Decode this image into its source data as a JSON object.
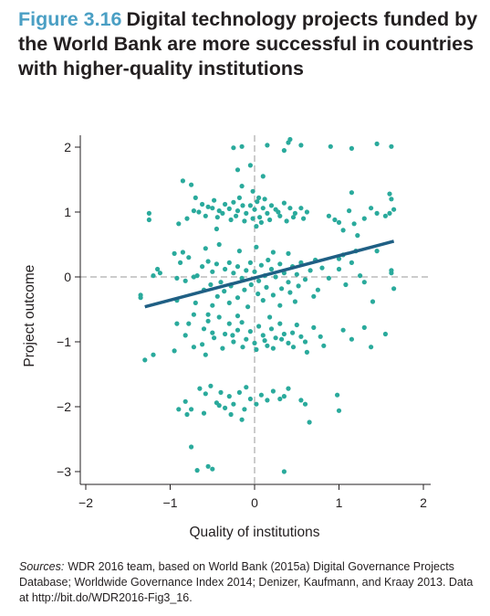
{
  "title": {
    "figure_label": "Figure 3.16",
    "text": "Digital technology projects funded by the World Bank are more successful in countries with higher-quality institutions"
  },
  "sources": {
    "label": "Sources:",
    "text": "WDR 2016 team, based on World Bank (2015a) Digital Governance Projects Database; Worldwide Governance Index 2014; Denizer, Kaufmann, and Kraay 2013. Data at http://bit.do/WDR2016-Fig3_16."
  },
  "colors": {
    "points": "#2aaa9c",
    "fit_line": "#1f5f84",
    "axes": "#231f20",
    "reference_lines": "#999999"
  },
  "chart_data": {
    "type": "scatter",
    "xlabel": "Quality of institutions",
    "ylabel": "Project outcome",
    "xlim": [
      -2,
      2
    ],
    "ylim": [
      -3,
      2
    ],
    "x_ticks": [
      -2,
      -1,
      0,
      1,
      2
    ],
    "x_tick_labels": [
      "−2",
      "−1",
      "0",
      "1",
      "2"
    ],
    "y_ticks": [
      -3,
      -2,
      -1,
      0,
      1,
      2
    ],
    "y_tick_labels": [
      "−3",
      "−2",
      "−1",
      "0",
      "1",
      "2"
    ],
    "reference_lines": {
      "x": 0,
      "y": 0
    },
    "fit_line": {
      "x": [
        -1.3,
        1.65
      ],
      "y": [
        -0.46,
        0.55
      ]
    },
    "points": [
      [
        -0.25,
        1.99
      ],
      [
        -0.15,
        2.01
      ],
      [
        0.15,
        2.03
      ],
      [
        0.4,
        2.07
      ],
      [
        0.55,
        2.03
      ],
      [
        0.42,
        2.12
      ],
      [
        0.9,
        2.01
      ],
      [
        1.15,
        1.98
      ],
      [
        1.45,
        2.05
      ],
      [
        1.62,
        2.01
      ],
      [
        0.35,
        1.95
      ],
      [
        -0.85,
        1.48
      ],
      [
        -0.75,
        1.42
      ],
      [
        -0.2,
        1.65
      ],
      [
        -0.05,
        1.72
      ],
      [
        0.1,
        1.55
      ],
      [
        -0.15,
        1.4
      ],
      [
        -0.02,
        1.32
      ],
      [
        0.05,
        1.22
      ],
      [
        -0.7,
        1.22
      ],
      [
        -0.62,
        1.12
      ],
      [
        -0.55,
        1.08
      ],
      [
        -0.48,
        1.18
      ],
      [
        -0.42,
        1.02
      ],
      [
        -0.35,
        1.12
      ],
      [
        -0.3,
        1.05
      ],
      [
        -0.25,
        1.15
      ],
      [
        -0.2,
        1.02
      ],
      [
        -0.18,
        1.22
      ],
      [
        -0.14,
        1.1
      ],
      [
        -0.1,
        0.98
      ],
      [
        -0.05,
        1.1
      ],
      [
        0.0,
        1.04
      ],
      [
        0.03,
        1.16
      ],
      [
        0.06,
        0.92
      ],
      [
        0.1,
        1.06
      ],
      [
        0.12,
        1.2
      ],
      [
        0.15,
        0.98
      ],
      [
        0.2,
        1.1
      ],
      [
        0.25,
        1.04
      ],
      [
        0.3,
        0.94
      ],
      [
        0.35,
        1.14
      ],
      [
        0.42,
        1.06
      ],
      [
        0.48,
        0.98
      ],
      [
        0.55,
        1.06
      ],
      [
        0.62,
        1.0
      ],
      [
        -0.66,
        1.0
      ],
      [
        -0.58,
        0.94
      ],
      [
        -0.5,
        1.06
      ],
      [
        -0.44,
        0.92
      ],
      [
        -0.38,
        0.98
      ],
      [
        -0.28,
        0.88
      ],
      [
        -0.22,
        0.94
      ],
      [
        -0.12,
        0.86
      ],
      [
        -0.02,
        0.9
      ],
      [
        0.08,
        0.84
      ],
      [
        0.18,
        0.88
      ],
      [
        0.28,
        1.0
      ],
      [
        0.38,
        0.86
      ],
      [
        0.46,
        0.92
      ],
      [
        0.58,
        0.9
      ],
      [
        -0.8,
        0.9
      ],
      [
        -0.72,
        1.02
      ],
      [
        -0.9,
        0.82
      ],
      [
        -1.25,
        0.98
      ],
      [
        -1.25,
        0.88
      ],
      [
        -0.45,
        0.74
      ],
      [
        0.02,
        0.78
      ],
      [
        0.88,
        0.94
      ],
      [
        0.95,
        0.88
      ],
      [
        1.0,
        0.84
      ],
      [
        1.05,
        0.72
      ],
      [
        1.12,
        1.02
      ],
      [
        1.18,
        0.82
      ],
      [
        1.22,
        0.64
      ],
      [
        1.15,
        1.3
      ],
      [
        1.38,
        1.06
      ],
      [
        1.45,
        0.98
      ],
      [
        1.55,
        0.94
      ],
      [
        1.6,
        1.28
      ],
      [
        1.62,
        1.2
      ],
      [
        1.65,
        1.04
      ],
      [
        1.6,
        0.98
      ],
      [
        1.3,
        0.9
      ],
      [
        -1.35,
        -0.28
      ],
      [
        -1.35,
        -0.32
      ],
      [
        -1.2,
        0.02
      ],
      [
        -1.15,
        0.12
      ],
      [
        -1.12,
        0.06
      ],
      [
        -0.88,
        0.22
      ],
      [
        -0.85,
        0.38
      ],
      [
        -0.78,
        0.3
      ],
      [
        -0.72,
        0.0
      ],
      [
        -0.68,
        0.02
      ],
      [
        -0.62,
        0.16
      ],
      [
        -0.55,
        0.24
      ],
      [
        -0.5,
        0.08
      ],
      [
        -0.45,
        0.2
      ],
      [
        -0.4,
        -0.08
      ],
      [
        -0.35,
        0.12
      ],
      [
        -0.3,
        0.22
      ],
      [
        -0.25,
        0.06
      ],
      [
        -0.2,
        0.16
      ],
      [
        -0.15,
        -0.02
      ],
      [
        -0.1,
        0.1
      ],
      [
        -0.05,
        0.22
      ],
      [
        0.0,
        0.08
      ],
      [
        0.05,
        -0.06
      ],
      [
        0.08,
        0.18
      ],
      [
        0.12,
        0.02
      ],
      [
        0.16,
        0.26
      ],
      [
        0.2,
        0.12
      ],
      [
        0.25,
        0.0
      ],
      [
        0.3,
        0.2
      ],
      [
        0.35,
        0.06
      ],
      [
        0.4,
        -0.08
      ],
      [
        0.45,
        0.16
      ],
      [
        0.5,
        0.04
      ],
      [
        0.55,
        0.22
      ],
      [
        0.6,
        -0.04
      ],
      [
        0.66,
        0.1
      ],
      [
        0.72,
        0.26
      ],
      [
        0.8,
        0.14
      ],
      [
        -0.6,
        -0.2
      ],
      [
        -0.52,
        -0.12
      ],
      [
        -0.44,
        -0.3
      ],
      [
        -0.36,
        -0.22
      ],
      [
        -0.28,
        -0.14
      ],
      [
        -0.2,
        -0.32
      ],
      [
        -0.12,
        -0.2
      ],
      [
        -0.04,
        -0.12
      ],
      [
        0.04,
        -0.26
      ],
      [
        0.14,
        -0.16
      ],
      [
        0.22,
        -0.28
      ],
      [
        0.32,
        -0.18
      ],
      [
        0.42,
        -0.24
      ],
      [
        0.52,
        -0.14
      ],
      [
        -0.58,
        0.44
      ],
      [
        -0.42,
        0.5
      ],
      [
        -0.18,
        0.4
      ],
      [
        0.02,
        0.46
      ],
      [
        0.22,
        0.38
      ],
      [
        0.4,
        0.36
      ],
      [
        -0.95,
        0.36
      ],
      [
        -0.92,
        -0.02
      ],
      [
        -0.82,
        -0.06
      ],
      [
        -0.92,
        -0.36
      ],
      [
        -0.7,
        -0.4
      ],
      [
        -0.5,
        -0.44
      ],
      [
        -0.3,
        -0.4
      ],
      [
        -0.08,
        -0.46
      ],
      [
        0.1,
        -0.36
      ],
      [
        0.3,
        -0.44
      ],
      [
        0.48,
        -0.38
      ],
      [
        0.7,
        -0.3
      ],
      [
        0.75,
        -0.2
      ],
      [
        0.88,
        -0.02
      ],
      [
        1.0,
        0.12
      ],
      [
        1.05,
        0.34
      ],
      [
        1.08,
        -0.12
      ],
      [
        1.15,
        0.22
      ],
      [
        1.25,
        0.02
      ],
      [
        1.3,
        -0.08
      ],
      [
        1.45,
        0.4
      ],
      [
        1.62,
        0.1
      ],
      [
        1.62,
        0.06
      ],
      [
        1.65,
        -0.18
      ],
      [
        1.4,
        -0.38
      ],
      [
        1.0,
        0.28
      ],
      [
        1.2,
        0.4
      ],
      [
        -0.78,
        -0.72
      ],
      [
        -0.72,
        -0.58
      ],
      [
        -0.6,
        -0.8
      ],
      [
        -0.55,
        -0.68
      ],
      [
        -0.48,
        -0.94
      ],
      [
        -0.42,
        -0.62
      ],
      [
        -0.35,
        -0.88
      ],
      [
        -0.3,
        -0.72
      ],
      [
        -0.25,
        -1.0
      ],
      [
        -0.2,
        -0.82
      ],
      [
        -0.15,
        -0.7
      ],
      [
        -0.1,
        -0.96
      ],
      [
        -0.05,
        -0.84
      ],
      [
        0.0,
        -1.02
      ],
      [
        0.05,
        -0.76
      ],
      [
        0.1,
        -0.9
      ],
      [
        0.15,
        -1.06
      ],
      [
        0.2,
        -0.8
      ],
      [
        0.25,
        -0.94
      ],
      [
        0.3,
        -0.72
      ],
      [
        0.35,
        -0.88
      ],
      [
        0.4,
        -1.02
      ],
      [
        0.45,
        -0.86
      ],
      [
        0.5,
        -0.74
      ],
      [
        0.55,
        -0.92
      ],
      [
        0.6,
        -1.0
      ],
      [
        0.7,
        -0.78
      ],
      [
        0.78,
        -0.92
      ],
      [
        -0.62,
        -1.04
      ],
      [
        -0.5,
        -0.86
      ],
      [
        -0.38,
        -1.1
      ],
      [
        -0.26,
        -0.9
      ],
      [
        -0.14,
        -1.08
      ],
      [
        0.02,
        -1.12
      ],
      [
        0.12,
        -0.98
      ],
      [
        0.22,
        -1.1
      ],
      [
        0.32,
        -0.96
      ],
      [
        0.46,
        -1.08
      ],
      [
        -0.55,
        -0.58
      ],
      [
        -0.2,
        -0.6
      ],
      [
        0.18,
        -0.62
      ],
      [
        -0.92,
        -0.72
      ],
      [
        -0.82,
        -0.9
      ],
      [
        -1.2,
        -1.2
      ],
      [
        -1.3,
        -1.28
      ],
      [
        -0.95,
        -1.14
      ],
      [
        -0.72,
        -1.08
      ],
      [
        -0.58,
        -1.2
      ],
      [
        0.62,
        -1.16
      ],
      [
        0.82,
        -1.06
      ],
      [
        1.05,
        -0.82
      ],
      [
        1.15,
        -0.96
      ],
      [
        1.3,
        -0.78
      ],
      [
        1.38,
        -1.08
      ],
      [
        1.55,
        -0.88
      ],
      [
        -0.65,
        -1.72
      ],
      [
        -0.58,
        -1.8
      ],
      [
        -0.52,
        -1.68
      ],
      [
        -0.45,
        -1.94
      ],
      [
        -0.4,
        -1.78
      ],
      [
        -0.35,
        -2.02
      ],
      [
        -0.3,
        -1.84
      ],
      [
        -0.25,
        -1.96
      ],
      [
        -0.18,
        -1.78
      ],
      [
        -0.12,
        -2.04
      ],
      [
        -0.05,
        -1.88
      ],
      [
        0.02,
        -1.96
      ],
      [
        0.08,
        -1.82
      ],
      [
        0.15,
        -1.9
      ],
      [
        0.22,
        -1.76
      ],
      [
        0.3,
        -1.88
      ],
      [
        0.35,
        -1.84
      ],
      [
        0.55,
        -1.9
      ],
      [
        0.6,
        -1.96
      ],
      [
        -0.82,
        -1.92
      ],
      [
        -0.75,
        -2.04
      ],
      [
        -0.9,
        -2.04
      ],
      [
        -0.6,
        -2.1
      ],
      [
        -0.42,
        -1.98
      ],
      [
        -0.1,
        -1.7
      ],
      [
        0.4,
        -1.72
      ],
      [
        0.65,
        -2.24
      ],
      [
        0.98,
        -1.82
      ],
      [
        1.0,
        -2.06
      ],
      [
        -0.28,
        -2.12
      ],
      [
        -0.15,
        -2.2
      ],
      [
        -0.8,
        -2.12
      ],
      [
        -0.75,
        -2.62
      ],
      [
        -0.68,
        -2.98
      ],
      [
        -0.55,
        -2.92
      ],
      [
        -0.5,
        -2.96
      ],
      [
        0.35,
        -3.0
      ]
    ]
  }
}
